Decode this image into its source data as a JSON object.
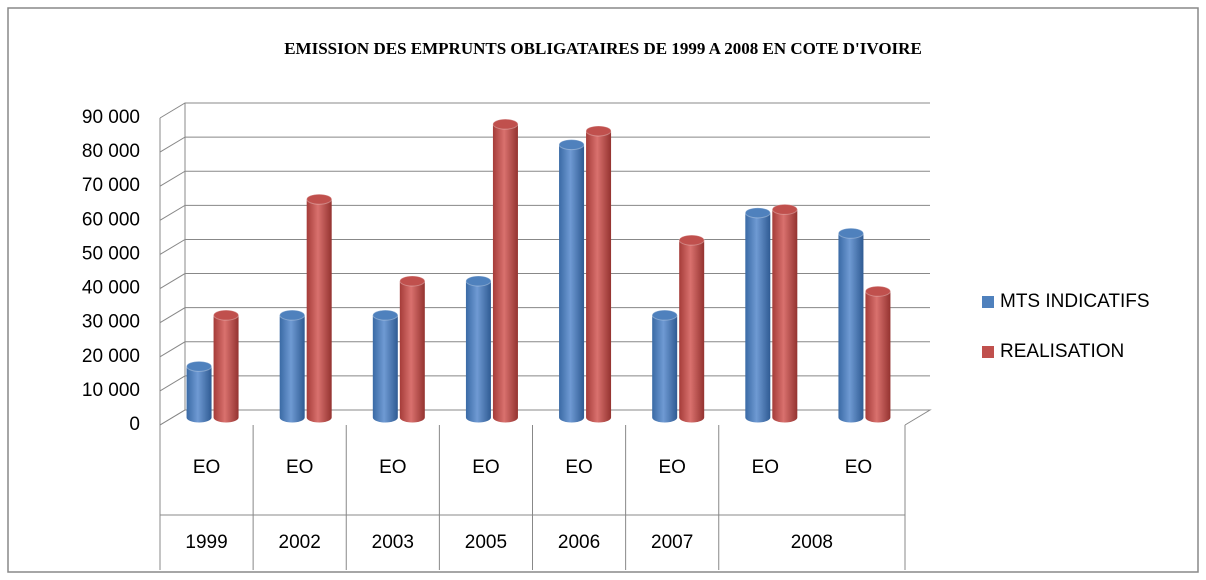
{
  "chart_data": {
    "type": "bar3d",
    "title": "EMISSION DES EMPRUNTS OBLIGATAIRES DE 1999 A 2008 EN  COTE D'IVOIRE",
    "categories": [
      "EO",
      "EO",
      "EO",
      "EO",
      "EO",
      "EO",
      "EO",
      "EO"
    ],
    "group_labels": [
      "1999",
      "2002",
      "2003",
      "2005",
      "2006",
      "2007",
      "2008",
      null
    ],
    "series": [
      {
        "name": "MTS INDICATIFS",
        "color": "#4f81bd",
        "values": [
          15000,
          30000,
          30000,
          40000,
          80000,
          30000,
          60000,
          54000
        ]
      },
      {
        "name": "REALISATION",
        "color": "#c0504d",
        "values": [
          30000,
          64000,
          40000,
          86000,
          84000,
          52000,
          61000,
          37000
        ]
      }
    ],
    "ylim": [
      0,
      90000
    ],
    "yticks": [
      0,
      {
        "value": 10000,
        "label": "10 000"
      },
      {
        "value": 20000,
        "label": "20 000"
      },
      {
        "value": 30000,
        "label": "30 000"
      },
      {
        "value": 40000,
        "label": "40 000"
      },
      {
        "value": 50000,
        "label": "50 000"
      },
      {
        "value": 60000,
        "label": "60 000"
      },
      {
        "value": 70000,
        "label": "70 000"
      },
      {
        "value": 80000,
        "label": "80 000"
      },
      {
        "value": 90000,
        "label": "90 000"
      }
    ],
    "grid": true,
    "legend": "right"
  }
}
